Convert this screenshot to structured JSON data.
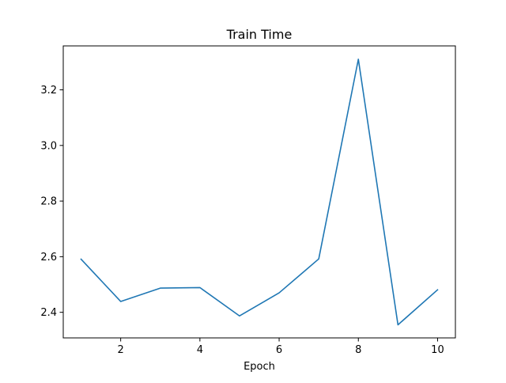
{
  "chart_data": {
    "type": "line",
    "title": "Train Time",
    "xlabel": "Epoch",
    "ylabel": "",
    "xlim": [
      0.55,
      10.45
    ],
    "ylim": [
      2.308,
      3.358
    ],
    "x_ticks": [
      2,
      4,
      6,
      8,
      10
    ],
    "y_ticks": [
      2.4,
      2.6,
      2.8,
      3.0,
      3.2
    ],
    "x_tick_labels": [
      "2",
      "4",
      "6",
      "8",
      "10"
    ],
    "y_tick_labels": [
      "2.4",
      "2.6",
      "2.8",
      "3.0",
      "3.2"
    ],
    "grid": false,
    "series": [
      {
        "color": "#1f77b4",
        "x": [
          1,
          2,
          3,
          4,
          5,
          6,
          7,
          8,
          9,
          10
        ],
        "y": [
          2.591,
          2.439,
          2.487,
          2.489,
          2.387,
          2.47,
          2.592,
          3.31,
          2.355,
          2.481
        ]
      }
    ]
  }
}
